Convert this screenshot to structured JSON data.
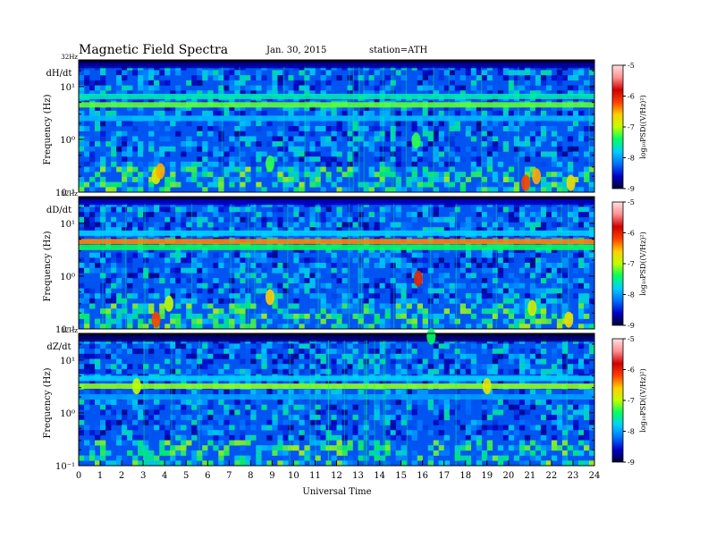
{
  "header": {
    "title": "Magnetic  Field  Spectra",
    "date": "Jan. 30, 2015",
    "station": "station=ATH"
  },
  "chart_data": {
    "type": "heatmap",
    "title": "Magnetic  Field  Spectra",
    "xlabel": "Universal Time",
    "x_ticks": [
      "0",
      "1",
      "2",
      "3",
      "4",
      "5",
      "6",
      "7",
      "8",
      "9",
      "10",
      "11",
      "12",
      "13",
      "14",
      "15",
      "16",
      "17",
      "18",
      "19",
      "20",
      "21",
      "22",
      "23",
      "24"
    ],
    "xlim": [
      0,
      24
    ],
    "ylabel": "Frequency  (Hz)",
    "yscale": "log",
    "ylim_hz": [
      0.1,
      32
    ],
    "top_label": "32Hz",
    "colorbar": {
      "label": "log₁₀PSD((V/Hz)²)",
      "ticks": [
        "-5",
        "-6",
        "-7",
        "-8",
        "-9"
      ],
      "range": [
        -9,
        -5
      ],
      "colors": [
        "#000033",
        "#0000c8",
        "#0070ff",
        "#00d0ff",
        "#00ff60",
        "#c0ff00",
        "#ffd000",
        "#ff4000",
        "#d00000",
        "#ff9090",
        "#ffe0e0"
      ]
    },
    "panels": [
      {
        "name": "dH/dt",
        "y_ticks": [
          "10¹",
          "10⁰",
          "10⁻¹"
        ],
        "bands": [
          {
            "freq_hz": 25,
            "level": -8.7
          },
          {
            "freq_hz": 6.5,
            "level": -7.6
          },
          {
            "freq_hz": 4.5,
            "level": -7.2
          },
          {
            "freq_hz": 2.5,
            "level": -7.9
          }
        ],
        "bursts": [
          {
            "time_h": 3.6,
            "freq_hz": 0.2,
            "level": -6.8
          },
          {
            "time_h": 3.8,
            "freq_hz": 0.25,
            "level": -6.5
          },
          {
            "time_h": 8.9,
            "freq_hz": 0.35,
            "level": -7.3
          },
          {
            "time_h": 15.7,
            "freq_hz": 0.95,
            "level": -7.3
          },
          {
            "time_h": 20.8,
            "freq_hz": 0.15,
            "level": -6.2
          },
          {
            "time_h": 21.3,
            "freq_hz": 0.2,
            "level": -6.5
          },
          {
            "time_h": 22.9,
            "freq_hz": 0.15,
            "level": -6.7
          }
        ]
      },
      {
        "name": "dD/dt",
        "y_ticks": [
          "10¹",
          "10⁰",
          "10⁻¹"
        ],
        "bands": [
          {
            "freq_hz": 25,
            "level": -8.6
          },
          {
            "freq_hz": 6.5,
            "level": -7.8
          },
          {
            "freq_hz": 4.5,
            "level": -6.4
          },
          {
            "freq_hz": 3.5,
            "level": -7.4
          }
        ],
        "bursts": [
          {
            "time_h": 3.6,
            "freq_hz": 0.15,
            "level": -6.2
          },
          {
            "time_h": 4.2,
            "freq_hz": 0.3,
            "level": -7.0
          },
          {
            "time_h": 8.9,
            "freq_hz": 0.4,
            "level": -6.6
          },
          {
            "time_h": 15.8,
            "freq_hz": 0.9,
            "level": -6.0
          },
          {
            "time_h": 21.1,
            "freq_hz": 0.25,
            "level": -6.9
          },
          {
            "time_h": 22.8,
            "freq_hz": 0.15,
            "level": -6.7
          }
        ]
      },
      {
        "name": "dZ/dt",
        "y_ticks": [
          "10¹",
          "10⁰",
          "10⁻¹"
        ],
        "bands": [
          {
            "freq_hz": 25,
            "level": -8.8
          },
          {
            "freq_hz": 4.5,
            "level": -7.8
          },
          {
            "freq_hz": 3.2,
            "level": -7.1
          },
          {
            "freq_hz": 2.0,
            "level": -8.0
          }
        ],
        "bursts": [
          {
            "time_h": 2.7,
            "freq_hz": 3.2,
            "level": -7.0
          },
          {
            "time_h": 16.4,
            "freq_hz": 28,
            "level": -7.4
          },
          {
            "time_h": 19.0,
            "freq_hz": 3.2,
            "level": -6.8
          }
        ]
      }
    ]
  }
}
